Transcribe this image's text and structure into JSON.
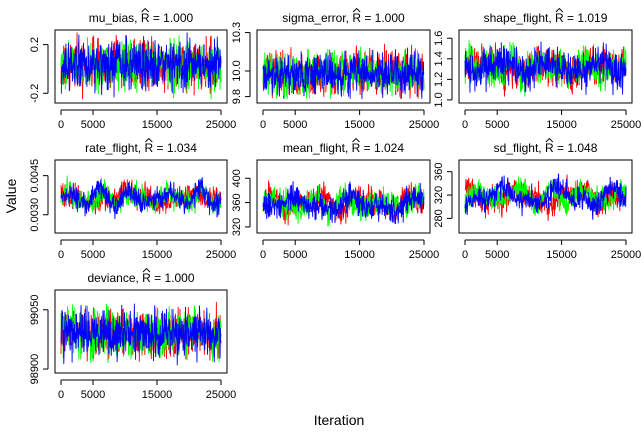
{
  "chart_data": {
    "type": "line",
    "xlabel": "Iteration",
    "ylabel": "Value",
    "series_colors": [
      "#ff0000",
      "#00ff00",
      "#0000ff"
    ],
    "panels": [
      {
        "name": "mu_bias",
        "rhat": "1.000",
        "xlim": [
          0,
          25000
        ],
        "xticks": [
          0,
          5000,
          15000,
          25000
        ],
        "xtick_labels": [
          "0",
          "5000",
          "15000",
          "25000"
        ],
        "ylim": [
          -0.28,
          0.32
        ],
        "yticks": [
          -0.2,
          0.2
        ],
        "ytick_labels": [
          "-0.2",
          "0.2"
        ],
        "center": 0.03,
        "noise": 0.1,
        "lo": -0.25,
        "hi": 0.3,
        "drift": 0
      },
      {
        "name": "sigma_error",
        "rhat": "1.000",
        "xlim": [
          0,
          25000
        ],
        "xticks": [
          0,
          5000,
          15000,
          25000
        ],
        "xtick_labels": [
          "0",
          "5000",
          "15000",
          "25000"
        ],
        "ylim": [
          9.75,
          10.32
        ],
        "yticks": [
          9.8,
          10.0,
          10.3
        ],
        "ytick_labels": [
          "9.8",
          "10.0",
          "10.3"
        ],
        "center": 9.98,
        "noise": 0.085,
        "lo": 9.78,
        "hi": 10.27,
        "drift": 0
      },
      {
        "name": "shape_flight",
        "rhat": "1.019",
        "xlim": [
          0,
          25000
        ],
        "xticks": [
          0,
          5000,
          15000,
          25000
        ],
        "xtick_labels": [
          "0",
          "5000",
          "15000",
          "25000"
        ],
        "ylim": [
          0.97,
          1.68
        ],
        "yticks": [
          1.0,
          1.2,
          1.4,
          1.6
        ],
        "ytick_labels": [
          "1.0",
          "1.2",
          "1.4",
          "1.6"
        ],
        "center": 1.32,
        "noise": 0.09,
        "lo": 1.0,
        "hi": 1.65,
        "drift": 0.07
      },
      {
        "name": "rate_flight",
        "rhat": "1.034",
        "xlim": [
          0,
          25000
        ],
        "xticks": [
          0,
          5000,
          15000,
          25000
        ],
        "xtick_labels": [
          "0",
          "5000",
          "15000",
          "25000"
        ],
        "ylim": [
          0.0023,
          0.0051
        ],
        "yticks": [
          0.003,
          0.0045
        ],
        "ytick_labels": [
          "0.0030",
          "0.0045"
        ],
        "center": 0.00365,
        "noise": 0.00022,
        "lo": 0.0025,
        "hi": 0.0049,
        "drift": 0.00032
      },
      {
        "name": "mean_flight",
        "rhat": "1.024",
        "xlim": [
          0,
          25000
        ],
        "xticks": [
          0,
          5000,
          15000,
          25000
        ],
        "xtick_labels": [
          "0",
          "5000",
          "15000",
          "25000"
        ],
        "ylim": [
          310,
          430
        ],
        "yticks": [
          320,
          360,
          400
        ],
        "ytick_labels": [
          "320",
          "360",
          "400"
        ],
        "center": 358,
        "noise": 11,
        "lo": 318,
        "hi": 420,
        "drift": 14
      },
      {
        "name": "sd_flight",
        "rhat": "1.048",
        "xlim": [
          0,
          25000
        ],
        "xticks": [
          0,
          5000,
          15000,
          25000
        ],
        "xtick_labels": [
          "0",
          "5000",
          "15000",
          "25000"
        ],
        "ylim": [
          255,
          380
        ],
        "yticks": [
          280,
          320,
          360
        ],
        "ytick_labels": [
          "280",
          "320",
          "360"
        ],
        "center": 318,
        "noise": 10,
        "lo": 266,
        "hi": 372,
        "drift": 18
      },
      {
        "name": "deviance",
        "rhat": "1.000",
        "xlim": [
          0,
          25000
        ],
        "xticks": [
          0,
          5000,
          15000,
          25000
        ],
        "xtick_labels": [
          "0",
          "5000",
          "15000",
          "25000"
        ],
        "ylim": [
          98890,
          99100
        ],
        "yticks": [
          98900,
          99050
        ],
        "ytick_labels": [
          "98900",
          "99050"
        ],
        "center": 98990,
        "noise": 30,
        "lo": 98905,
        "hi": 99085,
        "drift": 0
      }
    ]
  }
}
